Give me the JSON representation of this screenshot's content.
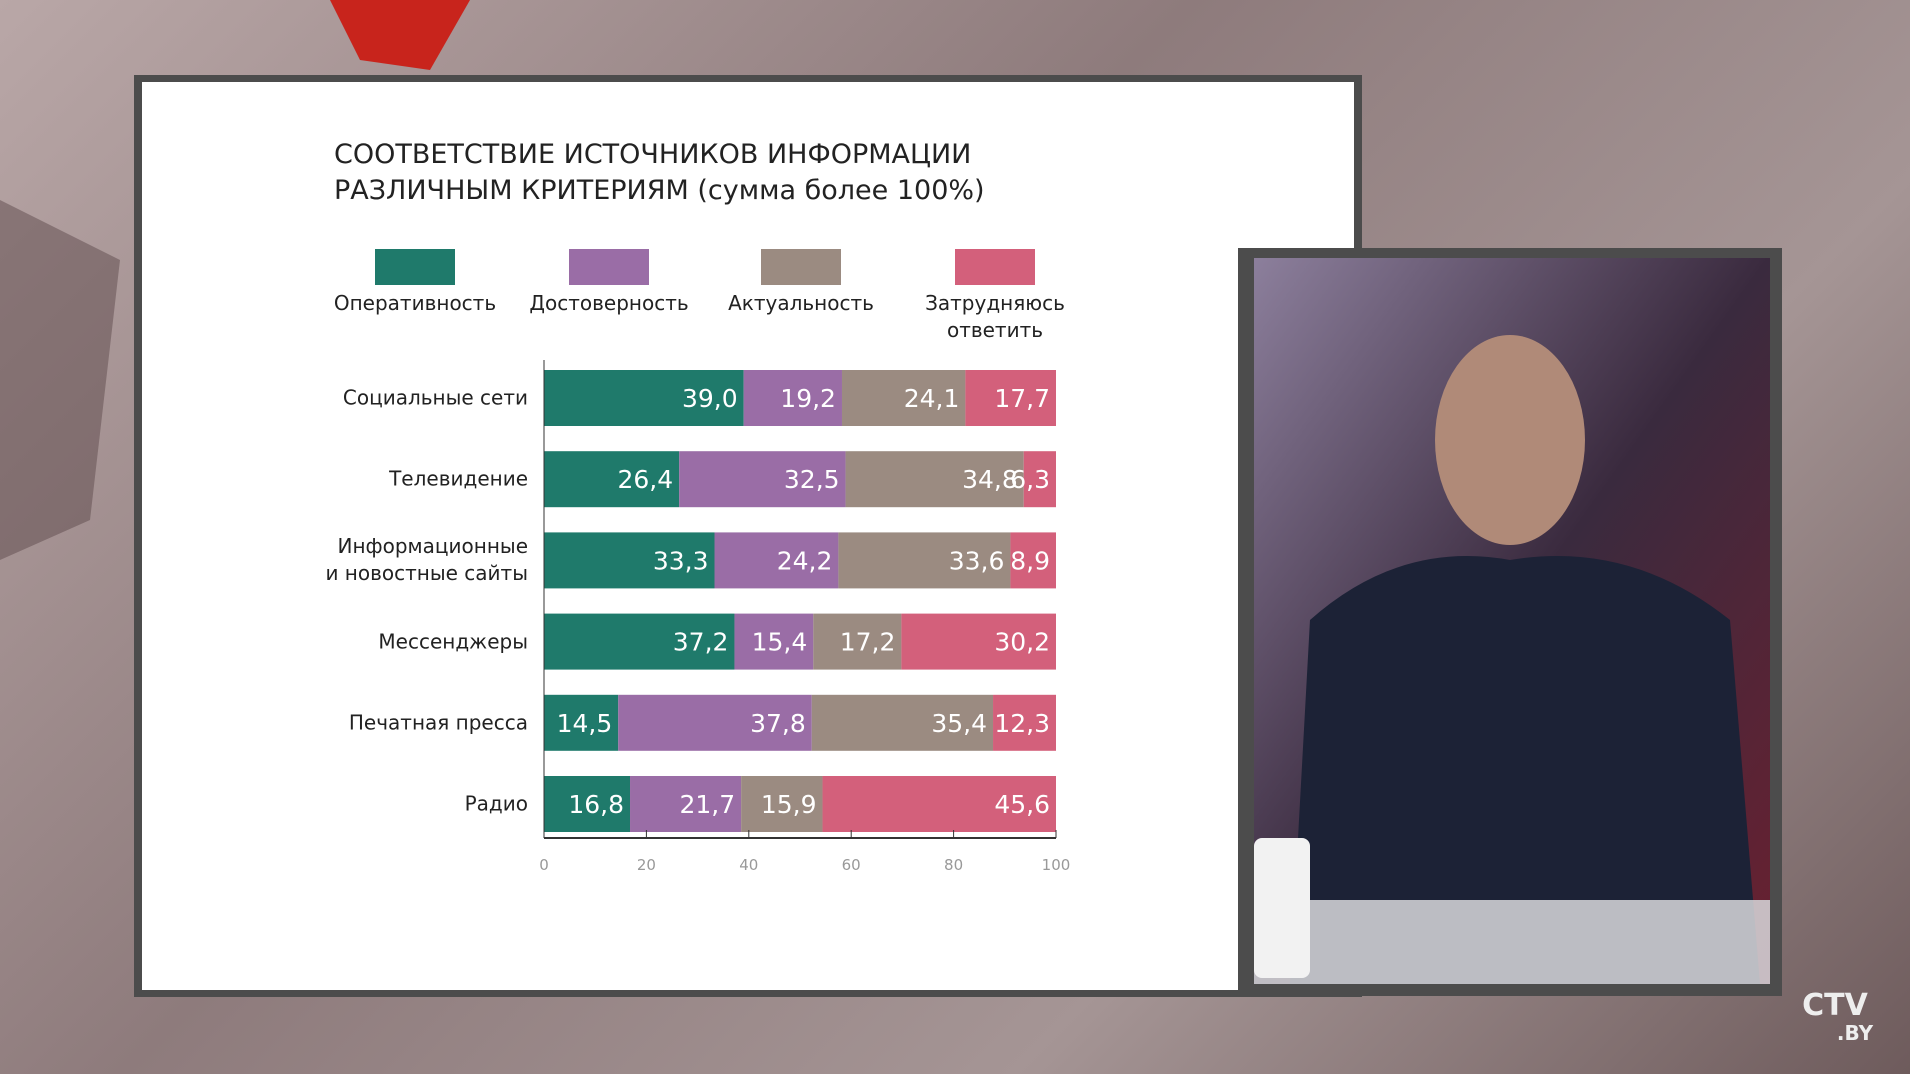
{
  "chart_data": {
    "type": "stacked-bar-horizontal",
    "title": "СООТВЕТСТВИЕ ИСТОЧНИКОВ ИНФОРМАЦИИ",
    "subtitle": "РАЗЛИЧНЫМ КРИТЕРИЯМ (сумма более 100%)",
    "categories": [
      "Социальные сети",
      "Телевидение",
      "Информационные\nи новостные сайты",
      "Мессенджеры",
      "Печатная пресса",
      "Радио"
    ],
    "series": [
      {
        "name": "Оперативность",
        "color": "#1f7a6b",
        "values": [
          39.0,
          26.4,
          33.3,
          37.2,
          14.5,
          16.8
        ],
        "value_labels": [
          "39,0",
          "26,4",
          "33,3",
          "37,2",
          "14,5",
          "16,8"
        ]
      },
      {
        "name": "Достоверность",
        "color": "#9a6da6",
        "values": [
          19.2,
          32.5,
          24.2,
          15.4,
          37.8,
          21.7
        ],
        "value_labels": [
          "19,2",
          "32,5",
          "24,2",
          "15,4",
          "37,8",
          "21,7"
        ]
      },
      {
        "name": "Актуальность",
        "color": "#9b8b81",
        "values": [
          24.1,
          34.8,
          33.6,
          17.2,
          35.4,
          15.9
        ],
        "value_labels": [
          "24,1",
          "34,8",
          "33,6",
          "17,2",
          "35,4",
          "15,9"
        ]
      },
      {
        "name": "Затрудняюсь\nответить",
        "color": "#d3607b",
        "values": [
          17.7,
          6.3,
          8.9,
          30.2,
          12.3,
          45.6
        ],
        "value_labels": [
          "17,7",
          "6,3",
          "8,9",
          "30,2",
          "12,3",
          "45,6"
        ]
      }
    ],
    "xlim": [
      0,
      100
    ],
    "xticks": [
      0,
      20,
      40,
      60,
      80,
      100
    ]
  },
  "logo": {
    "main": "CTV",
    "sub": ".BY"
  }
}
